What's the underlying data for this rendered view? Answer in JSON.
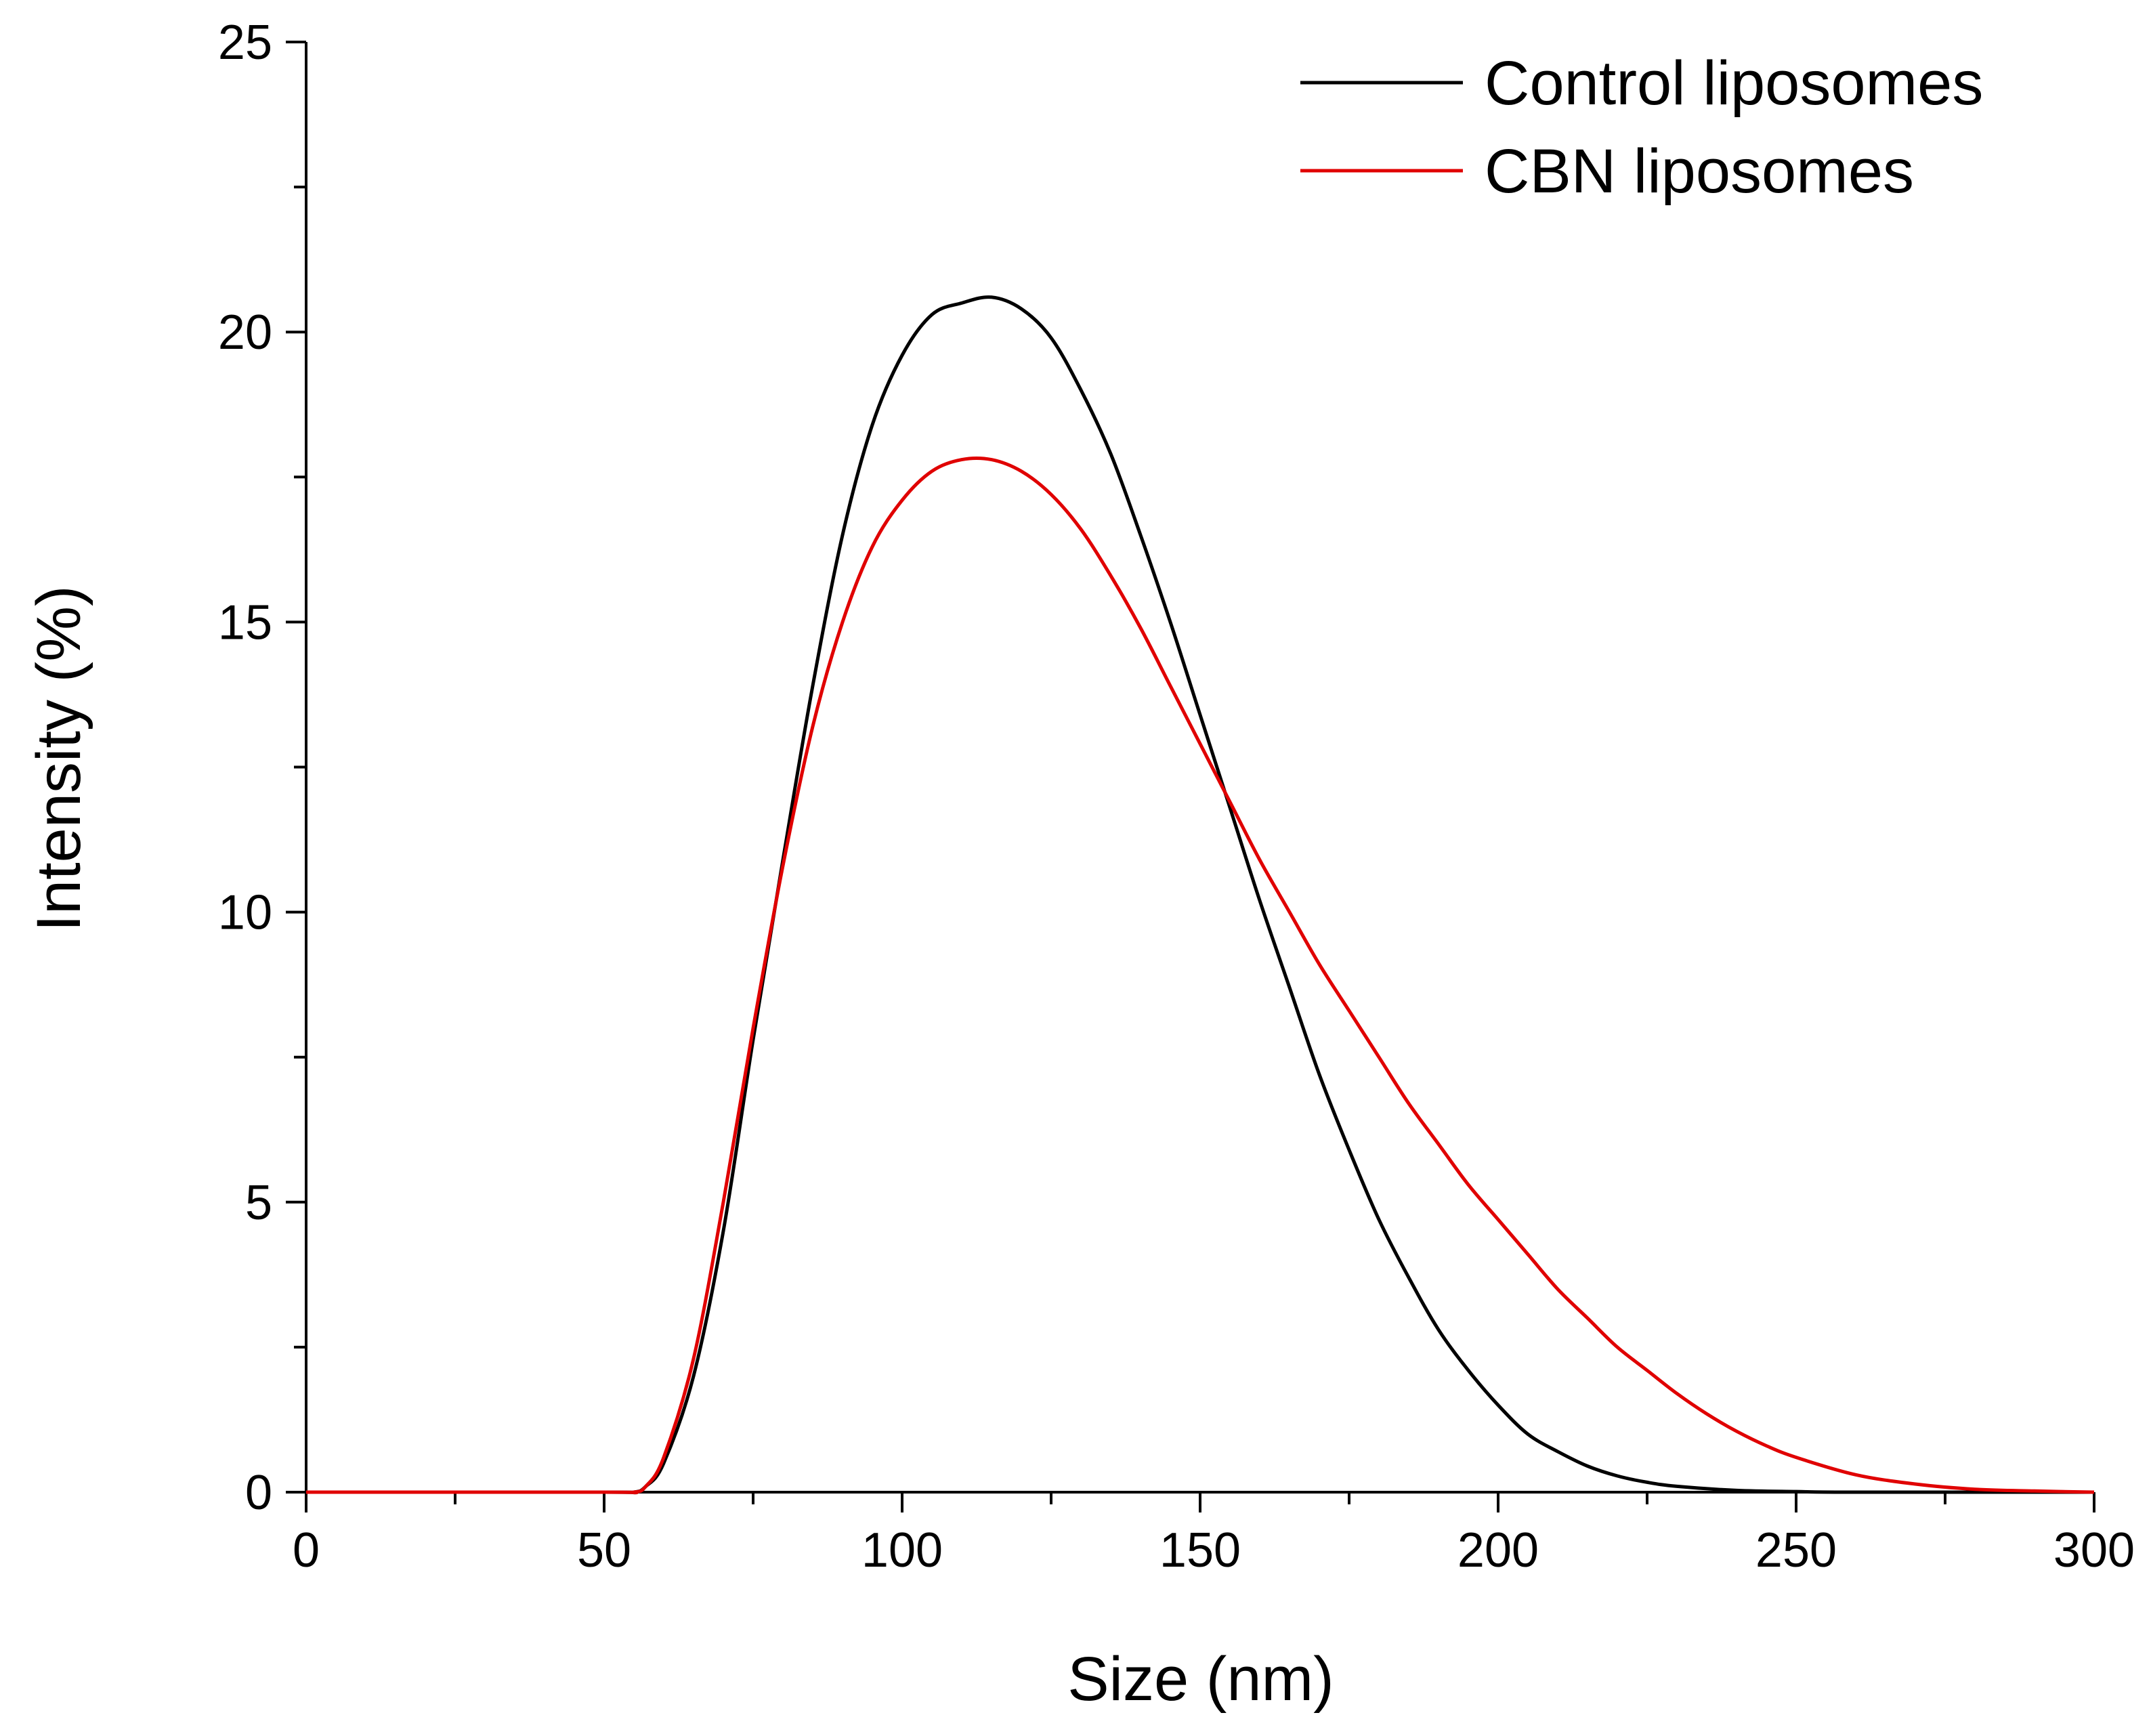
{
  "chart_data": {
    "type": "line",
    "title": "",
    "xlabel": "Size (nm)",
    "ylabel": "Intensity (%)",
    "xlim": [
      0,
      300
    ],
    "ylim": [
      0,
      25
    ],
    "x_ticks": [
      0,
      50,
      100,
      150,
      200,
      250,
      300
    ],
    "y_ticks": [
      0,
      5,
      10,
      15,
      20,
      25
    ],
    "grid": false,
    "legend_position": "top-right",
    "series": [
      {
        "name": "Control liposomes",
        "color": "#000000",
        "points": [
          [
            0,
            0
          ],
          [
            50,
            0
          ],
          [
            55,
            0
          ],
          [
            57,
            0.1
          ],
          [
            60,
            0.5
          ],
          [
            65,
            2.0
          ],
          [
            70,
            4.5
          ],
          [
            75,
            7.8
          ],
          [
            80,
            10.9
          ],
          [
            85,
            13.9
          ],
          [
            90,
            16.5
          ],
          [
            95,
            18.4
          ],
          [
            100,
            19.6
          ],
          [
            105,
            20.3
          ],
          [
            110,
            20.5
          ],
          [
            115,
            20.6
          ],
          [
            120,
            20.4
          ],
          [
            125,
            19.9
          ],
          [
            130,
            19.0
          ],
          [
            135,
            17.9
          ],
          [
            140,
            16.5
          ],
          [
            145,
            15.0
          ],
          [
            150,
            13.4
          ],
          [
            155,
            11.8
          ],
          [
            160,
            10.2
          ],
          [
            165,
            8.7
          ],
          [
            170,
            7.2
          ],
          [
            175,
            5.9
          ],
          [
            180,
            4.7
          ],
          [
            185,
            3.7
          ],
          [
            190,
            2.8
          ],
          [
            195,
            2.1
          ],
          [
            200,
            1.5
          ],
          [
            205,
            1.0
          ],
          [
            210,
            0.7
          ],
          [
            215,
            0.45
          ],
          [
            220,
            0.28
          ],
          [
            225,
            0.17
          ],
          [
            230,
            0.1
          ],
          [
            240,
            0.03
          ],
          [
            250,
            0.01
          ],
          [
            260,
            0
          ],
          [
            300,
            0
          ]
        ]
      },
      {
        "name": "CBN liposomes",
        "color": "#e00000",
        "points": [
          [
            0,
            0
          ],
          [
            50,
            0
          ],
          [
            55,
            0
          ],
          [
            57,
            0.1
          ],
          [
            60,
            0.6
          ],
          [
            65,
            2.3
          ],
          [
            70,
            5.0
          ],
          [
            75,
            8.0
          ],
          [
            80,
            10.8
          ],
          [
            85,
            13.2
          ],
          [
            90,
            15.0
          ],
          [
            95,
            16.3
          ],
          [
            100,
            17.1
          ],
          [
            105,
            17.6
          ],
          [
            110,
            17.8
          ],
          [
            115,
            17.8
          ],
          [
            120,
            17.6
          ],
          [
            125,
            17.2
          ],
          [
            130,
            16.6
          ],
          [
            135,
            15.8
          ],
          [
            140,
            14.9
          ],
          [
            145,
            13.9
          ],
          [
            150,
            12.9
          ],
          [
            155,
            11.9
          ],
          [
            160,
            10.9
          ],
          [
            165,
            10.0
          ],
          [
            170,
            9.1
          ],
          [
            175,
            8.3
          ],
          [
            180,
            7.5
          ],
          [
            185,
            6.7
          ],
          [
            190,
            6.0
          ],
          [
            195,
            5.3
          ],
          [
            200,
            4.7
          ],
          [
            205,
            4.1
          ],
          [
            210,
            3.5
          ],
          [
            215,
            3.0
          ],
          [
            220,
            2.5
          ],
          [
            225,
            2.1
          ],
          [
            230,
            1.7
          ],
          [
            235,
            1.35
          ],
          [
            240,
            1.05
          ],
          [
            245,
            0.8
          ],
          [
            250,
            0.6
          ],
          [
            260,
            0.3
          ],
          [
            270,
            0.14
          ],
          [
            280,
            0.05
          ],
          [
            290,
            0.02
          ],
          [
            300,
            0
          ]
        ]
      }
    ]
  }
}
